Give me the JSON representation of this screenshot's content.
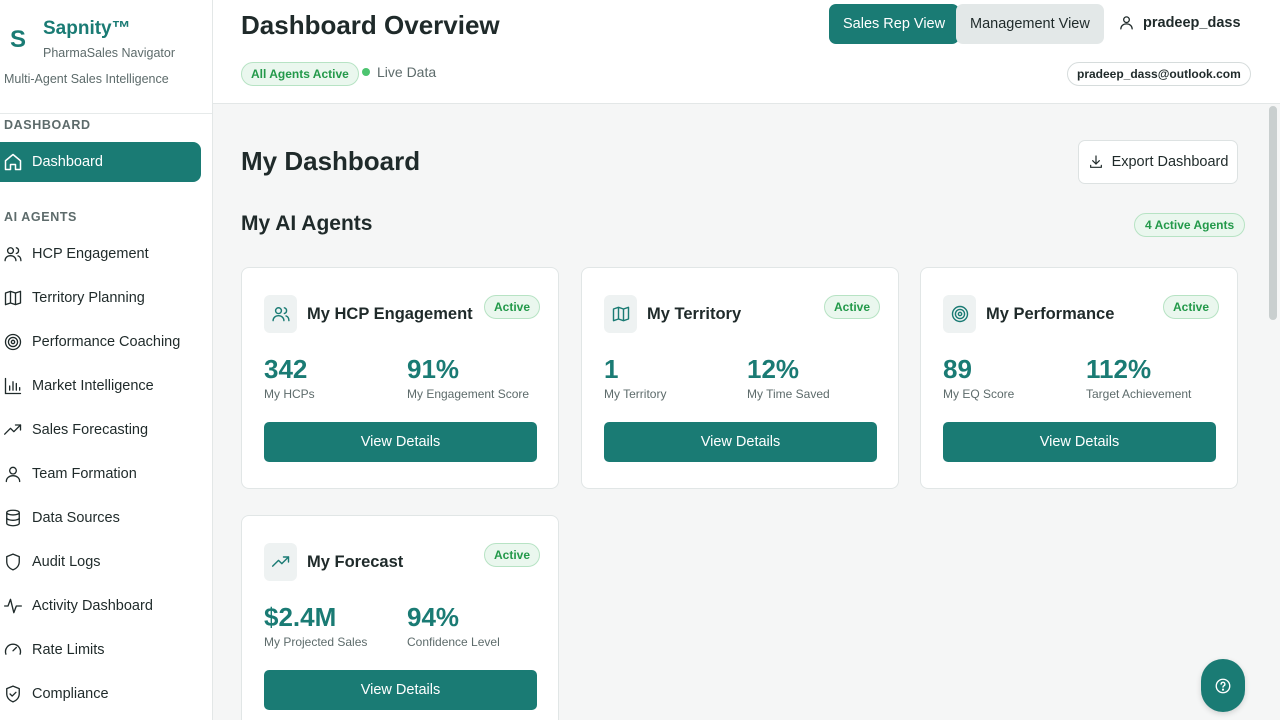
{
  "brand": {
    "logo": "S",
    "name": "Sapnity™",
    "subtitle": "PharmaSales Navigator",
    "tagline": "Multi-Agent Sales Intelligence"
  },
  "sidebar": {
    "section_dashboard": "DASHBOARD",
    "dashboard_item": {
      "label": "Dashboard",
      "icon": "home-icon"
    },
    "section_agents": "AI AGENTS",
    "items": [
      {
        "label": "HCP Engagement",
        "icon": "users-icon"
      },
      {
        "label": "Territory Planning",
        "icon": "map-icon"
      },
      {
        "label": "Performance Coaching",
        "icon": "target-icon"
      },
      {
        "label": "Market Intelligence",
        "icon": "bar-chart-icon"
      },
      {
        "label": "Sales Forecasting",
        "icon": "trending-up-icon"
      },
      {
        "label": "Team Formation",
        "icon": "user-icon"
      },
      {
        "label": "Data Sources",
        "icon": "database-icon"
      },
      {
        "label": "Audit Logs",
        "icon": "shield-icon"
      },
      {
        "label": "Activity Dashboard",
        "icon": "activity-icon"
      },
      {
        "label": "Rate Limits",
        "icon": "gauge-icon"
      },
      {
        "label": "Compliance",
        "icon": "shield-check-icon"
      }
    ]
  },
  "header": {
    "title": "Dashboard Overview",
    "status_badge": "All Agents Active",
    "live_label": "Live Data",
    "sales_rep_view": "Sales Rep View",
    "management_view": "Management View",
    "username": "pradeep_dass",
    "email": "pradeep_dass@outlook.com"
  },
  "main": {
    "title": "My Dashboard",
    "export_label": "Export Dashboard",
    "agents_title": "My AI Agents",
    "agents_count": "4 Active Agents",
    "cards": [
      {
        "title": "My HCP Engagement",
        "icon": "users-icon",
        "status": "Active",
        "metric1_value": "342",
        "metric1_label": "My HCPs",
        "metric2_value": "91%",
        "metric2_label": "My Engagement Score",
        "button": "View Details"
      },
      {
        "title": "My Territory",
        "icon": "map-icon",
        "status": "Active",
        "metric1_value": "1",
        "metric1_label": "My Territory",
        "metric2_value": "12%",
        "metric2_label": "My Time Saved",
        "button": "View Details"
      },
      {
        "title": "My Performance",
        "icon": "target-icon",
        "status": "Active",
        "metric1_value": "89",
        "metric1_label": "My EQ Score",
        "metric2_value": "112%",
        "metric2_label": "Target Achievement",
        "button": "View Details"
      },
      {
        "title": "My Forecast",
        "icon": "trending-up-icon",
        "status": "Active",
        "metric1_value": "$2.4M",
        "metric1_label": "My Projected Sales",
        "metric2_value": "94%",
        "metric2_label": "Confidence Level",
        "button": "View Details"
      }
    ]
  },
  "colors": {
    "accent": "#1a7b74",
    "success": "#23994a",
    "text": "#1f2a2a",
    "muted": "#5d6b6b"
  }
}
